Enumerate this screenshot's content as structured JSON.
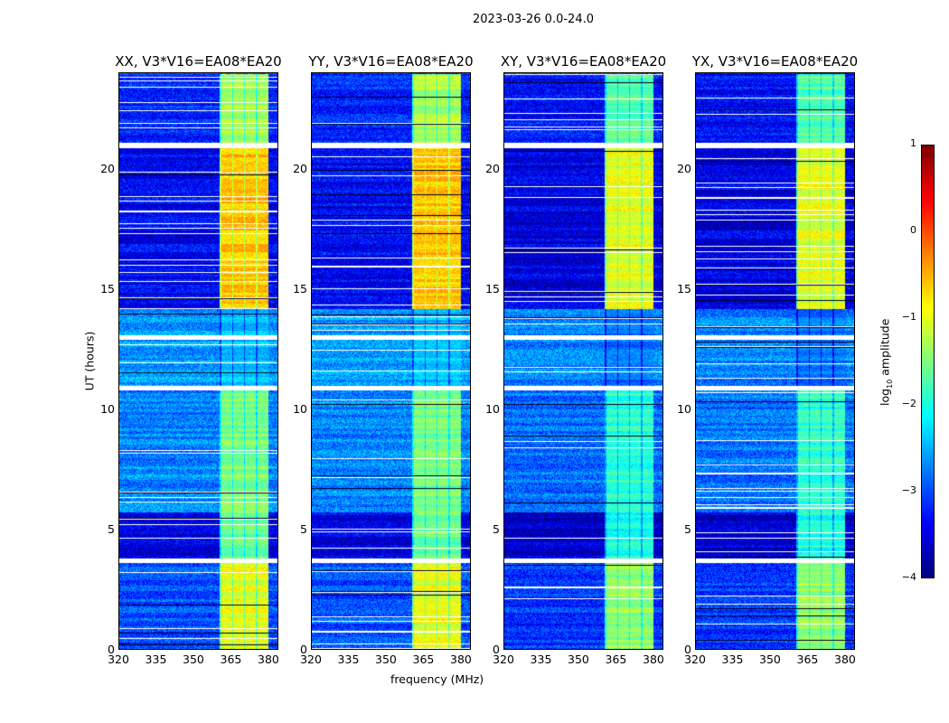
{
  "chart_data": {
    "type": "heatmap",
    "title": "2023-03-26 0.0-24.0",
    "panels": [
      {
        "title": "XX, V3*V16=EA08*EA20"
      },
      {
        "title": "YY, V3*V16=EA08*EA20"
      },
      {
        "title": "XY, V3*V16=EA08*EA20"
      },
      {
        "title": "YX, V3*V16=EA08*EA20"
      }
    ],
    "xlabel": "frequency (MHz)",
    "ylabel": "UT (hours)",
    "xlim": [
      320,
      384
    ],
    "ylim": [
      0,
      24
    ],
    "xticks": [
      "320",
      "335",
      "350",
      "365",
      "380"
    ],
    "xtick_values": [
      320,
      335,
      350,
      365,
      380
    ],
    "yticks": [
      "0",
      "5",
      "10",
      "15",
      "20"
    ],
    "ytick_values": [
      0,
      5,
      10,
      15,
      20
    ],
    "colormap": "jet",
    "colorbar": {
      "label_parts": [
        "log",
        "10",
        " amplitude"
      ],
      "range": [
        -4,
        1
      ],
      "ticks": [
        "1",
        "0",
        "−1",
        "−2",
        "−3",
        "−4"
      ],
      "tick_values": [
        1,
        0,
        -1,
        -2,
        -3,
        -4
      ]
    },
    "flagged_hours": [
      [
        3.6,
        3.8
      ],
      [
        10.8,
        11.0
      ],
      [
        12.9,
        13.1
      ],
      [
        20.9,
        21.1
      ]
    ],
    "rfi_band_mhz": [
      360.5,
      380
    ],
    "segments": [
      {
        "hours": [
          0,
          3.6
        ],
        "background": -3.0,
        "band": -1.0
      },
      {
        "hours": [
          3.8,
          5.7
        ],
        "background": -3.5,
        "band": -1.6
      },
      {
        "hours": [
          5.7,
          10.8
        ],
        "background": -2.7,
        "band": -1.5
      },
      {
        "hours": [
          11.0,
          14.2
        ],
        "background": -2.6,
        "band": -2.4
      },
      {
        "hours": [
          14.2,
          20.9
        ],
        "background": -3.4,
        "band": -0.6
      },
      {
        "hours": [
          21.1,
          24
        ],
        "background": -3.2,
        "band": -1.3
      }
    ]
  }
}
